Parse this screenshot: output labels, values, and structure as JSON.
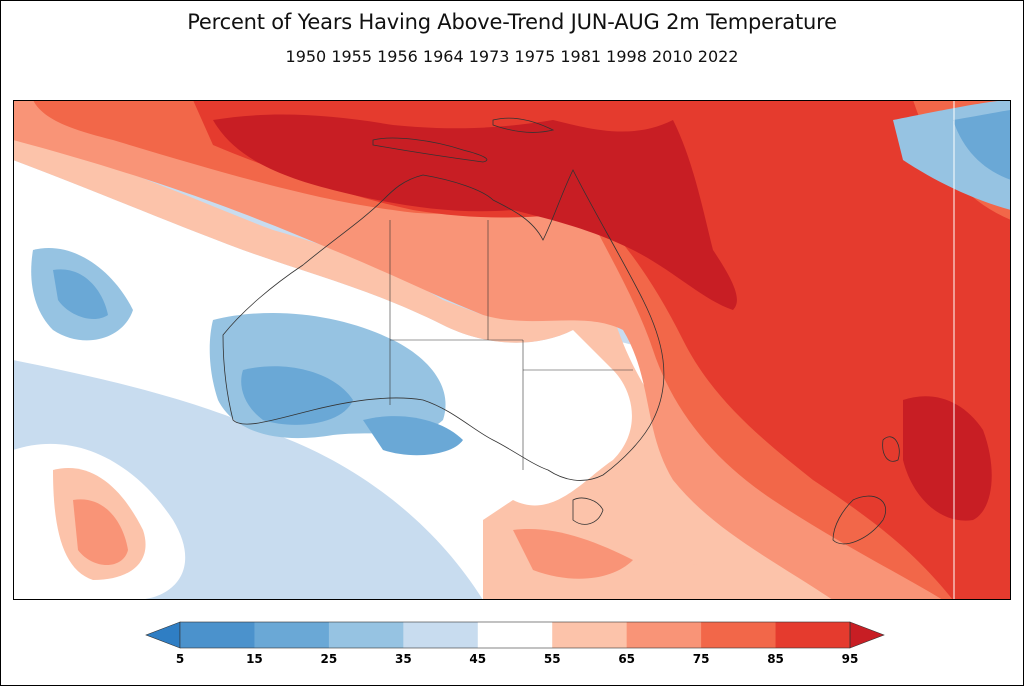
{
  "figure": {
    "title": "Percent of Years Having Above-Trend JUN-AUG 2m Temperature",
    "subtitle": "1950 1955 1956 1964 1973 1975 1981 1998 2010 2022"
  },
  "colorbar": {
    "levels": [
      "5",
      "15",
      "25",
      "35",
      "45",
      "55",
      "65",
      "75",
      "85",
      "95"
    ],
    "colors": [
      "#2f7ec4",
      "#4b92cc",
      "#6aa8d6",
      "#96c3e2",
      "#c8dcef",
      "#ffffff",
      "#fcc3aa",
      "#f99477",
      "#f26749",
      "#e53b2e",
      "#c81e24"
    ],
    "extend": "both"
  },
  "map": {
    "region": "Australia and surrounding ocean",
    "units": "percent"
  }
}
